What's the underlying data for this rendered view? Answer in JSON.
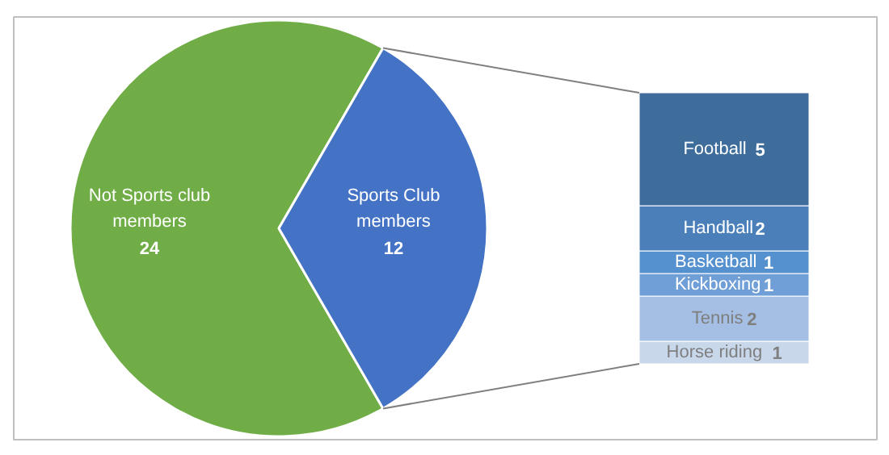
{
  "chart_data": [
    {
      "type": "pie",
      "categories": [
        "Not Sports club members",
        "Sports Club members"
      ],
      "values": [
        24,
        12
      ],
      "colors": [
        "#70ad47",
        "#4472c4"
      ],
      "data_labels": true
    },
    {
      "type": "bar",
      "stacked": true,
      "categories": [
        null
      ],
      "data_labels": true,
      "series": [
        {
          "name": "Horse riding",
          "color": "#c9d7eb",
          "values": [
            1
          ]
        },
        {
          "name": "Tennis",
          "color": "#a4bfe3",
          "values": [
            2
          ]
        },
        {
          "name": "Kickboxing",
          "color": "#6f9fd6",
          "values": [
            1
          ]
        },
        {
          "name": "Basketball",
          "color": "#5590cf",
          "values": [
            1
          ]
        },
        {
          "name": "Handball",
          "color": "#4a7fba",
          "values": [
            2
          ]
        },
        {
          "name": "Football",
          "color": "#3e6d9c",
          "values": [
            5
          ]
        }
      ]
    }
  ]
}
